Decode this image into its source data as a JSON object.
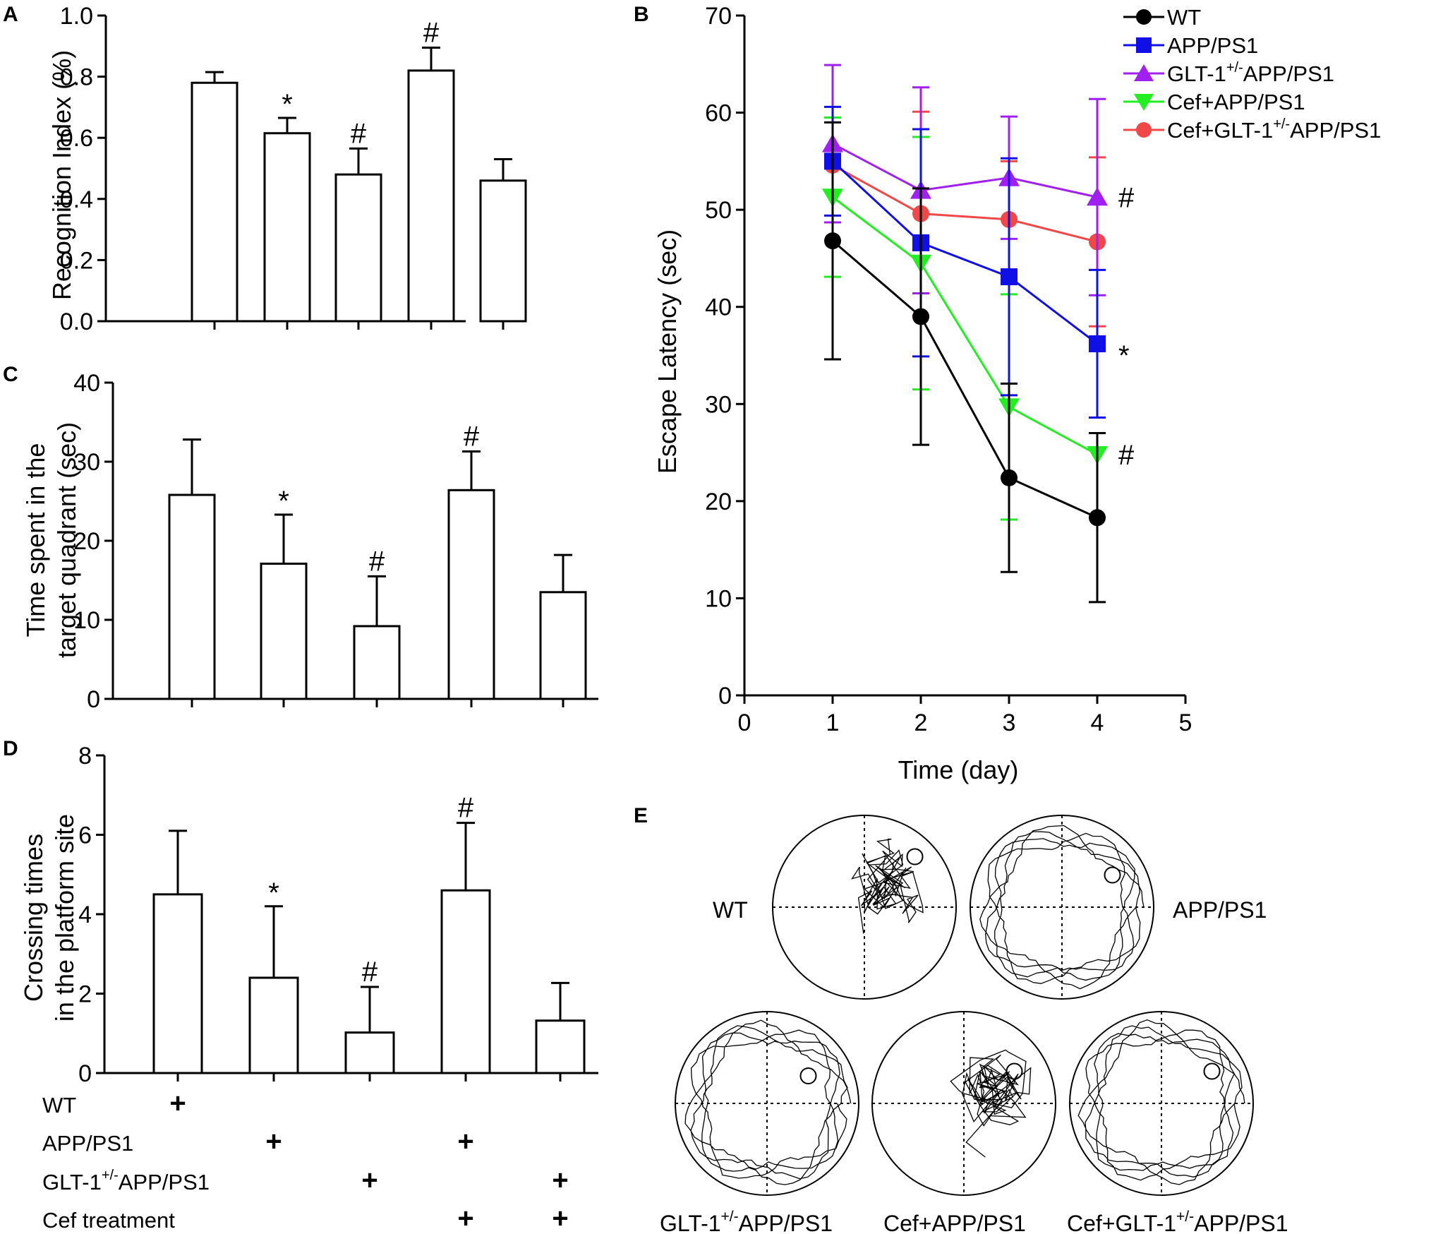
{
  "panels": {
    "A": {
      "letter": "A",
      "chart_data": {
        "type": "bar",
        "ylabel": "Recognition Index (%)",
        "ylim": [
          0,
          1.0
        ],
        "yticks": [
          "0.0",
          "0.2",
          "0.4",
          "0.6",
          "0.8",
          "1.0"
        ],
        "ytick_values": [
          0,
          0.2,
          0.4,
          0.6,
          0.8,
          1.0
        ],
        "values": [
          0.78,
          0.615,
          0.48,
          0.82,
          0.46
        ],
        "errors": [
          0.035,
          0.05,
          0.085,
          0.075,
          0.07
        ],
        "markers": [
          "",
          "*",
          "#",
          "#",
          ""
        ]
      }
    },
    "C": {
      "letter": "C",
      "chart_data": {
        "type": "bar",
        "ylabel_lines": [
          "Time spent in the",
          "target quadrant (sec)"
        ],
        "ylim": [
          0,
          40
        ],
        "yticks": [
          "0",
          "10",
          "20",
          "30",
          "40"
        ],
        "ytick_values": [
          0,
          10,
          20,
          30,
          40
        ],
        "values": [
          25.8,
          17.1,
          9.2,
          26.4,
          13.5
        ],
        "errors": [
          7.0,
          6.2,
          6.3,
          4.9,
          4.7
        ],
        "markers": [
          "",
          "*",
          "#",
          "#",
          ""
        ]
      }
    },
    "D": {
      "letter": "D",
      "chart_data": {
        "type": "bar",
        "ylabel_lines": [
          "Crossing times",
          "in the platform site"
        ],
        "ylim": [
          0,
          8
        ],
        "yticks": [
          "0",
          "2",
          "4",
          "6",
          "8"
        ],
        "ytick_values": [
          0,
          2,
          4,
          6,
          8
        ],
        "values": [
          4.5,
          2.4,
          1.02,
          4.6,
          1.32
        ],
        "errors": [
          1.6,
          1.8,
          1.15,
          1.7,
          0.95
        ],
        "markers": [
          "",
          "*",
          "#",
          "#",
          ""
        ]
      },
      "group_table": [
        {
          "label": "WT",
          "sup": "",
          "label_rest": "",
          "plus": [
            true,
            false,
            false,
            false,
            false
          ]
        },
        {
          "label": "APP/PS1",
          "sup": "",
          "label_rest": "",
          "plus": [
            false,
            true,
            false,
            true,
            false
          ]
        },
        {
          "label": "GLT-1",
          "sup": "+/-",
          "label_rest": "APP/PS1",
          "plus": [
            false,
            false,
            true,
            false,
            true
          ]
        },
        {
          "label": "Cef treatment",
          "sup": "",
          "label_rest": "",
          "plus": [
            false,
            false,
            false,
            true,
            true
          ]
        }
      ],
      "plus_sign": "+"
    },
    "B": {
      "letter": "B",
      "chart_data": {
        "type": "line",
        "xlabel": "Time (day)",
        "ylabel": "Escape Latency (sec)",
        "xlim": [
          0,
          5
        ],
        "ylim": [
          0,
          70
        ],
        "xticks": [
          "0",
          "1",
          "2",
          "3",
          "4",
          "5"
        ],
        "xtick_values": [
          0,
          1,
          2,
          3,
          4,
          5
        ],
        "yticks": [
          "0",
          "10",
          "20",
          "30",
          "40",
          "50",
          "60",
          "70"
        ],
        "ytick_values": [
          0,
          10,
          20,
          30,
          40,
          50,
          60,
          70
        ],
        "x": [
          1,
          2,
          3,
          4
        ],
        "series": [
          {
            "name": "WT",
            "sup": "",
            "name_rest": "",
            "color": "#000000",
            "marker": "circle",
            "values": [
              46.8,
              39.0,
              22.4,
              18.3
            ],
            "errors": [
              12.2,
              13.2,
              9.7,
              8.7
            ],
            "end_mark": ""
          },
          {
            "name": "APP/PS1",
            "sup": "",
            "name_rest": "",
            "color": "#1010e6",
            "marker": "square",
            "values": [
              55.0,
              46.6,
              43.1,
              36.2
            ],
            "errors": [
              5.6,
              11.7,
              12.2,
              7.6
            ],
            "end_mark": "*"
          },
          {
            "name": "GLT-1",
            "sup": "+/-",
            "name_rest": "APP/PS1",
            "color": "#a020f0",
            "marker": "triangle-up",
            "values": [
              56.8,
              52.0,
              53.3,
              51.3
            ],
            "errors": [
              8.1,
              10.6,
              6.3,
              10.1
            ],
            "end_mark": "#"
          },
          {
            "name": "Cef+APP/PS1",
            "sup": "",
            "name_rest": "",
            "color": "#22ee22",
            "marker": "triangle-down",
            "values": [
              51.3,
              44.5,
              29.7,
              24.8
            ],
            "errors": [
              8.2,
              13.0,
              11.6,
              0
            ],
            "end_mark": "#"
          },
          {
            "name": "Cef+GLT-1",
            "sup": "+/-",
            "name_rest": "APP/PS1",
            "color": "#f04848",
            "marker": "circle",
            "values": [
              54.6,
              49.6,
              49.0,
              46.7
            ],
            "errors": [
              0,
              10.5,
              6.0,
              8.7
            ],
            "end_mark": ""
          }
        ]
      }
    },
    "E": {
      "letter": "E",
      "tracks": [
        {
          "label": "WT",
          "sup": "",
          "label_rest": ""
        },
        {
          "label": "APP/PS1",
          "sup": "",
          "label_rest": ""
        },
        {
          "label": "GLT-1",
          "sup": "+/-",
          "label_rest": "APP/PS1"
        },
        {
          "label": "Cef+APP/PS1",
          "sup": "",
          "label_rest": ""
        },
        {
          "label": "Cef+GLT-1",
          "sup": "+/-",
          "label_rest": "APP/PS1"
        }
      ]
    }
  }
}
